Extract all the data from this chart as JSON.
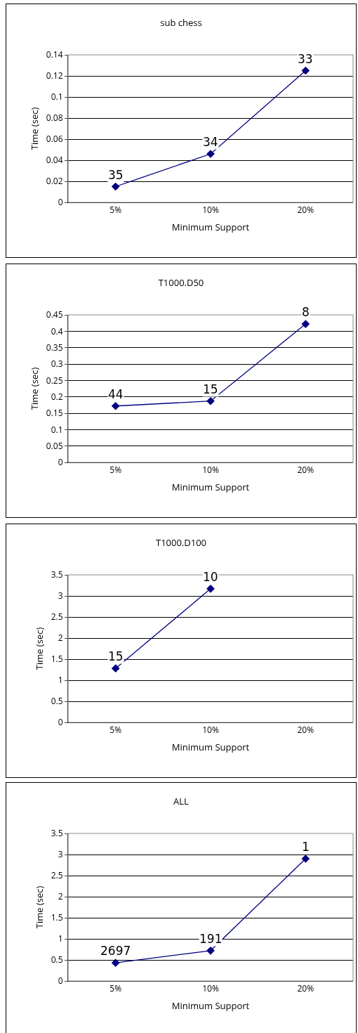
{
  "chart_data": [
    {
      "type": "line",
      "title": "sub chess",
      "xlabel": "Minimum Support",
      "ylabel": "Time (sec)",
      "categories": [
        "5%",
        "10%",
        "20%"
      ],
      "series": [
        {
          "color": "#000080",
          "values": [
            0.015,
            0.046,
            0.125
          ]
        }
      ],
      "ylim": [
        0,
        0.14
      ],
      "yticks": [
        0,
        0.02,
        0.04,
        0.06,
        0.08,
        0.1,
        0.12,
        0.14
      ],
      "grid": "y",
      "marker": "diamond",
      "line_style": "solid",
      "annotations": [
        {
          "text": "35",
          "x": "5%",
          "y": 0.015
        },
        {
          "text": "34",
          "x": "10%",
          "y": 0.046
        },
        {
          "text": "33",
          "x": "20%",
          "y": 0.125
        }
      ]
    },
    {
      "type": "line",
      "title": "T1000.D50",
      "xlabel": "Minimum Support",
      "ylabel": "Time (sec)",
      "categories": [
        "5%",
        "10%",
        "20%"
      ],
      "series": [
        {
          "color": "#000080",
          "values": [
            0.172,
            0.187,
            0.422
          ]
        }
      ],
      "ylim": [
        0,
        0.45
      ],
      "yticks": [
        0,
        0.05,
        0.1,
        0.15,
        0.2,
        0.25,
        0.3,
        0.35,
        0.4,
        0.45
      ],
      "grid": "y",
      "marker": "diamond",
      "line_style": "solid",
      "annotations": [
        {
          "text": "44",
          "x": "5%",
          "y": 0.172
        },
        {
          "text": "15",
          "x": "10%",
          "y": 0.187
        },
        {
          "text": "8",
          "x": "20%",
          "y": 0.422
        }
      ]
    },
    {
      "type": "line",
      "title": "T1000.D100",
      "xlabel": "Minimum Support",
      "ylabel": "Time (sec)",
      "categories": [
        "5%",
        "10%",
        "20%"
      ],
      "series": [
        {
          "color": "#000080",
          "values": [
            1.28,
            3.17,
            null
          ]
        }
      ],
      "ylim": [
        0,
        3.5
      ],
      "yticks": [
        0,
        0.5,
        1,
        1.5,
        2,
        2.5,
        3,
        3.5
      ],
      "grid": "y",
      "marker": "diamond",
      "line_style": "solid",
      "annotations": [
        {
          "text": "15",
          "x": "5%",
          "y": 1.28
        },
        {
          "text": "10",
          "x": "10%",
          "y": 3.17
        }
      ]
    },
    {
      "type": "line",
      "title": "ALL",
      "xlabel": "Minimum Support",
      "ylabel": "Time (sec)",
      "categories": [
        "5%",
        "10%",
        "20%"
      ],
      "series": [
        {
          "color": "#000080",
          "values": [
            0.43,
            0.72,
            2.9
          ]
        }
      ],
      "ylim": [
        0,
        3.5
      ],
      "yticks": [
        0,
        0.5,
        1,
        1.5,
        2,
        2.5,
        3,
        3.5
      ],
      "grid": "y",
      "marker": "diamond",
      "line_style": "solid",
      "annotations": [
        {
          "text": "2697",
          "x": "5%",
          "y": 0.43
        },
        {
          "text": "191",
          "x": "10%",
          "y": 0.72
        },
        {
          "text": "1",
          "x": "20%",
          "y": 2.9
        }
      ]
    }
  ]
}
